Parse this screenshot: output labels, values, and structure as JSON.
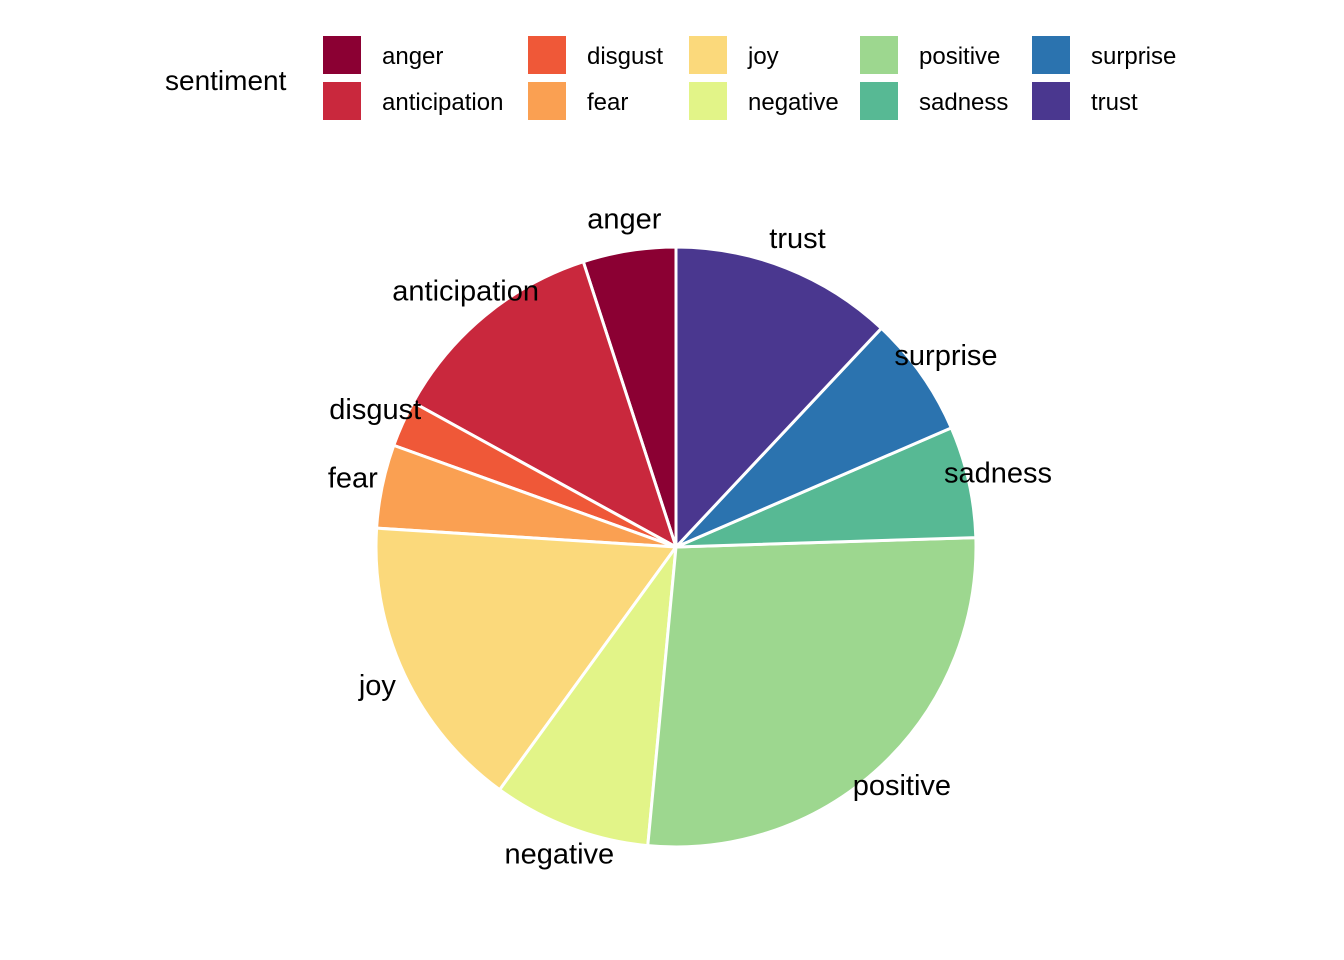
{
  "chart_data": {
    "type": "pie",
    "title": "",
    "legend": {
      "title": "sentiment",
      "placement": "top"
    },
    "slices": [
      {
        "label": "anger",
        "value": 5.0,
        "color": "#8B0033"
      },
      {
        "label": "anticipation",
        "value": 12.0,
        "color": "#C9283D"
      },
      {
        "label": "disgust",
        "value": 2.5,
        "color": "#EF5838"
      },
      {
        "label": "fear",
        "value": 4.5,
        "color": "#FAA052"
      },
      {
        "label": "joy",
        "value": 16.0,
        "color": "#FBD97B"
      },
      {
        "label": "negative",
        "value": 8.5,
        "color": "#E2F488"
      },
      {
        "label": "positive",
        "value": 27.0,
        "color": "#9DD78F"
      },
      {
        "label": "sadness",
        "value": 6.0,
        "color": "#57B994"
      },
      {
        "label": "surprise",
        "value": 6.5,
        "color": "#2B73AF"
      },
      {
        "label": "trust",
        "value": 12.0,
        "color": "#4A378F"
      }
    ]
  }
}
